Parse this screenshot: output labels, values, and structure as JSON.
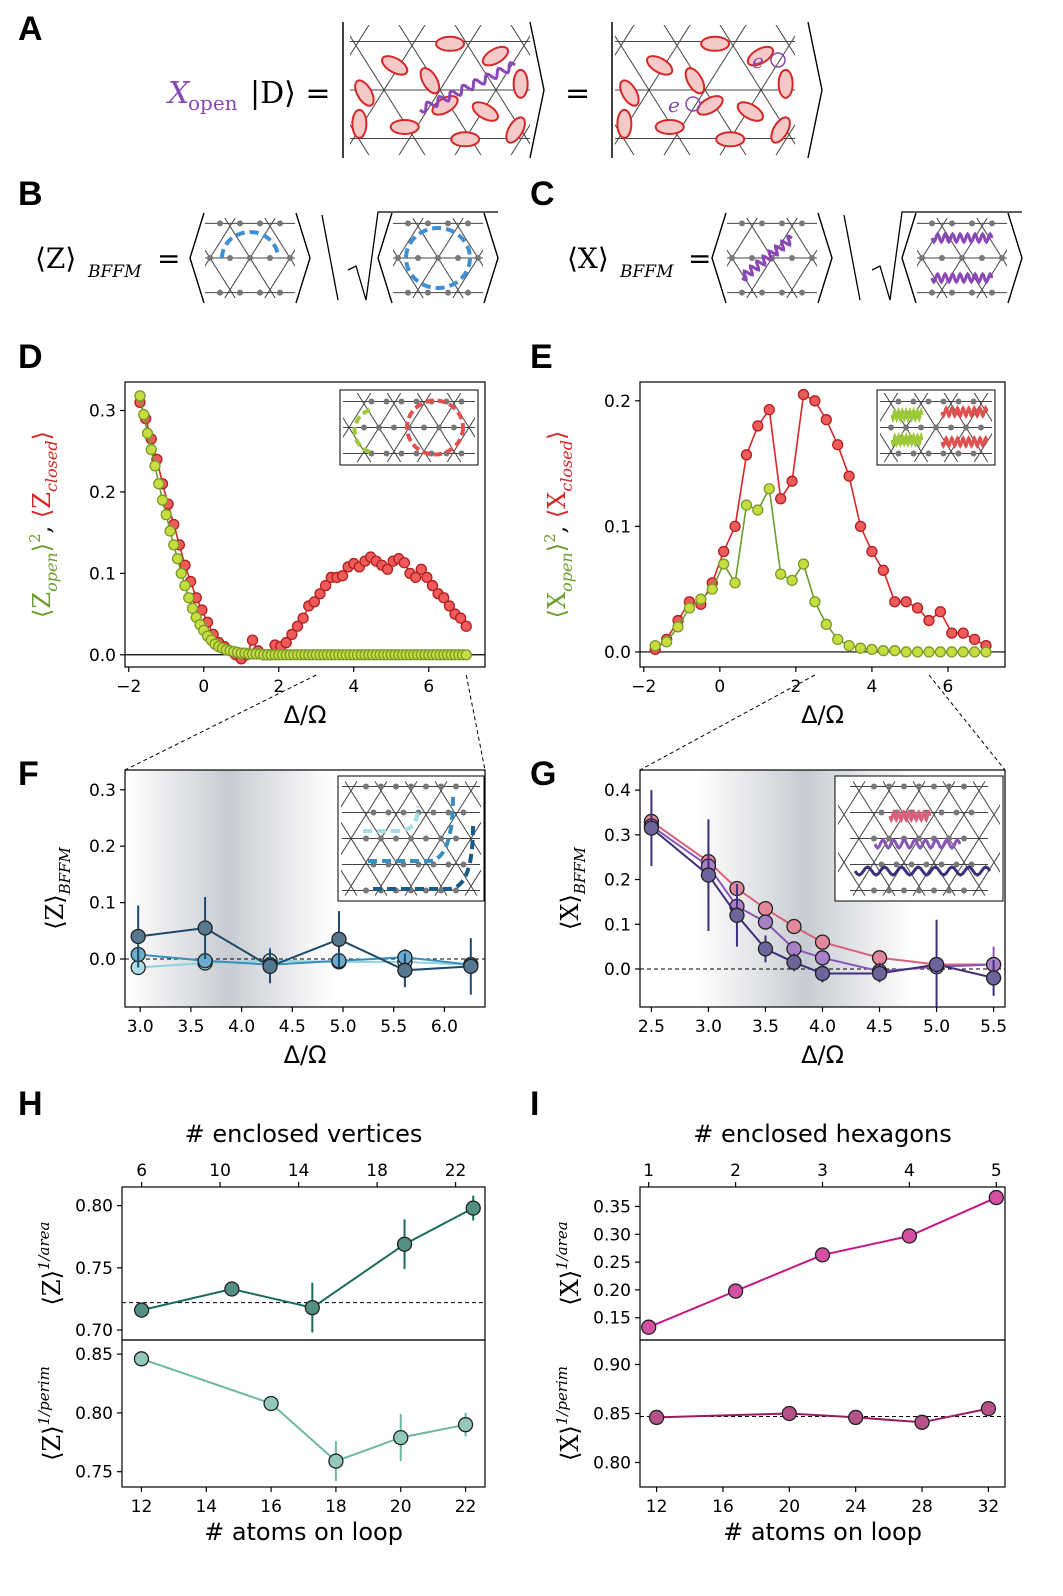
{
  "panel_letters": [
    "A",
    "B",
    "C",
    "D",
    "E",
    "F",
    "G",
    "H",
    "I"
  ],
  "equations": {
    "A": {
      "operator": "X",
      "operator_sub": "open",
      "ket": "|D⟩ =",
      "equals": "=",
      "excitation": "e"
    },
    "B": {
      "lhs": "⟨Z⟩",
      "lhs_sub": "BFFM",
      "equals": "="
    },
    "C": {
      "lhs": "⟨X⟩",
      "lhs_sub": "BFFM",
      "equals": "="
    }
  },
  "colors": {
    "red": "#d62728",
    "red_fill": "#ef5b5b",
    "green": "#6b9e2e",
    "green_fill": "#c7dc3f",
    "blue": "#3f8fd2",
    "purple": "#8a47b6",
    "teal_dark": "#1a6b5a",
    "teal_light": "#6eb7a4",
    "magenta": "#c71585",
    "magenta_dark": "#9c1a61"
  },
  "chart_data": [
    {
      "id": "D",
      "type": "line",
      "xlabel": "Δ/Ω",
      "ylabel_parts": [
        "⟨Z",
        "open",
        "⟩",
        "2",
        ", ",
        "⟨Z",
        "closed",
        "⟩"
      ],
      "xlim": [
        -2.1,
        7.5
      ],
      "ylim": [
        -0.015,
        0.335
      ],
      "xticks": [
        -2,
        0,
        2,
        4,
        6
      ],
      "xtick_labels": [
        "−2",
        "0",
        "2",
        "4",
        "6"
      ],
      "yticks": [
        0.0,
        0.1,
        0.2,
        0.3
      ],
      "ytick_labels": [
        "0.0",
        "0.1",
        "0.2",
        "0.3"
      ],
      "hline": 0.0,
      "series": [
        {
          "name": "Z_closed",
          "color": "red",
          "x": [
            -1.7,
            -1.55,
            -1.4,
            -1.25,
            -1.1,
            -0.95,
            -0.8,
            -0.65,
            -0.5,
            -0.35,
            -0.2,
            -0.05,
            0.1,
            0.25,
            0.4,
            0.55,
            0.7,
            0.85,
            1.0,
            1.15,
            1.3,
            1.45,
            1.6,
            1.75,
            1.9,
            2.05,
            2.2,
            2.35,
            2.5,
            2.65,
            2.8,
            2.95,
            3.1,
            3.25,
            3.4,
            3.55,
            3.7,
            3.85,
            4.0,
            4.15,
            4.3,
            4.45,
            4.6,
            4.75,
            4.9,
            5.05,
            5.2,
            5.35,
            5.5,
            5.65,
            5.8,
            5.95,
            6.1,
            6.25,
            6.4,
            6.55,
            6.7,
            6.85,
            7.0
          ],
          "y": [
            0.31,
            0.29,
            0.265,
            0.24,
            0.21,
            0.185,
            0.16,
            0.135,
            0.11,
            0.09,
            0.07,
            0.055,
            0.04,
            0.025,
            0.015,
            0.01,
            0.005,
            0.0,
            -0.005,
            0.0,
            0.018,
            0.005,
            0.0,
            0.0,
            0.012,
            0.01,
            0.015,
            0.025,
            0.035,
            0.045,
            0.06,
            0.065,
            0.075,
            0.085,
            0.095,
            0.095,
            0.097,
            0.108,
            0.112,
            0.108,
            0.115,
            0.12,
            0.115,
            0.11,
            0.105,
            0.115,
            0.118,
            0.113,
            0.1,
            0.095,
            0.105,
            0.095,
            0.085,
            0.075,
            0.07,
            0.06,
            0.05,
            0.045,
            0.035
          ],
          "err": 0.005
        },
        {
          "name": "Z_open_squared",
          "color": "green",
          "x": [
            -1.7,
            -1.6,
            -1.5,
            -1.4,
            -1.3,
            -1.2,
            -1.1,
            -1.0,
            -0.9,
            -0.8,
            -0.7,
            -0.6,
            -0.5,
            -0.4,
            -0.3,
            -0.2,
            -0.1,
            0.0,
            0.1,
            0.2,
            0.3,
            0.4,
            0.5,
            0.6,
            0.7,
            0.8,
            0.9,
            1.0,
            1.1,
            1.2,
            1.3,
            1.4,
            1.5,
            1.6,
            1.7,
            1.8,
            1.9,
            2.0,
            2.1,
            2.2,
            2.3,
            2.4,
            2.5,
            2.6,
            2.7,
            2.8,
            2.9,
            3.0,
            3.1,
            3.2,
            3.3,
            3.4,
            3.5,
            3.6,
            3.7,
            3.8,
            3.9,
            4.0,
            4.1,
            4.2,
            4.3,
            4.4,
            4.5,
            4.6,
            4.7,
            4.8,
            4.9,
            5.0,
            5.1,
            5.2,
            5.3,
            5.4,
            5.5,
            5.6,
            5.7,
            5.8,
            5.9,
            6.0,
            6.1,
            6.2,
            6.3,
            6.4,
            6.5,
            6.6,
            6.7,
            6.8,
            6.9,
            7.0
          ],
          "y": [
            0.318,
            0.295,
            0.272,
            0.252,
            0.232,
            0.21,
            0.19,
            0.172,
            0.152,
            0.135,
            0.118,
            0.1,
            0.085,
            0.07,
            0.057,
            0.046,
            0.037,
            0.03,
            0.023,
            0.018,
            0.013,
            0.01,
            0.008,
            0.006,
            0.005,
            0.004,
            0.003,
            0.002,
            0.002,
            0.001,
            0.001,
            0.001,
            0.001,
            0.0,
            0.0,
            0.0,
            0.0,
            0.0,
            0.0,
            0.0,
            0.0,
            0.0,
            0.0,
            0.0,
            0.0,
            0.0,
            0.0,
            0.0,
            0.0,
            0.0,
            0.0,
            0.0,
            0.0,
            0.0,
            0.0,
            0.0,
            0.0,
            0.0,
            0.0,
            0.0,
            0.0,
            0.0,
            0.0,
            0.0,
            0.0,
            0.0,
            0.0,
            0.0,
            0.0,
            0.0,
            0.0,
            0.0,
            0.0,
            0.0,
            0.0,
            0.0,
            0.0,
            0.0,
            0.0,
            0.0,
            0.0,
            0.0,
            0.0,
            0.0,
            0.0,
            0.0,
            0.0,
            0.0
          ],
          "err": 0.0
        }
      ]
    },
    {
      "id": "E",
      "type": "line",
      "xlabel": "Δ/Ω",
      "ylabel_parts": [
        "⟨X",
        "open",
        "⟩",
        "2",
        ", ",
        "⟨X",
        "closed",
        "⟩"
      ],
      "xlim": [
        -2.1,
        7.5
      ],
      "ylim": [
        -0.012,
        0.215
      ],
      "xticks": [
        -2,
        0,
        2,
        4,
        6
      ],
      "xtick_labels": [
        "−2",
        "0",
        "2",
        "4",
        "6"
      ],
      "yticks": [
        0.0,
        0.1,
        0.2
      ],
      "ytick_labels": [
        "0.0",
        "0.1",
        "0.2"
      ],
      "hline": 0.0,
      "series": [
        {
          "name": "X_closed",
          "color": "red",
          "x": [
            -1.7,
            -1.4,
            -1.1,
            -0.8,
            -0.5,
            -0.2,
            0.1,
            0.4,
            0.7,
            1.0,
            1.3,
            1.6,
            1.9,
            2.2,
            2.5,
            2.8,
            3.1,
            3.4,
            3.7,
            4.0,
            4.3,
            4.6,
            4.9,
            5.2,
            5.5,
            5.8,
            6.1,
            6.4,
            6.7,
            7.0
          ],
          "y": [
            0.002,
            0.01,
            0.025,
            0.04,
            0.038,
            0.055,
            0.08,
            0.1,
            0.157,
            0.18,
            0.193,
            0.122,
            0.136,
            0.205,
            0.2,
            0.185,
            0.165,
            0.14,
            0.1,
            0.08,
            0.065,
            0.04,
            0.04,
            0.035,
            0.025,
            0.032,
            0.015,
            0.015,
            0.01,
            0.005
          ],
          "err": 0.004
        },
        {
          "name": "X_open_squared",
          "color": "green",
          "x": [
            -1.7,
            -1.4,
            -1.1,
            -0.8,
            -0.5,
            -0.2,
            0.1,
            0.4,
            0.7,
            1.0,
            1.3,
            1.6,
            1.9,
            2.2,
            2.5,
            2.8,
            3.1,
            3.4,
            3.7,
            4.0,
            4.3,
            4.6,
            4.9,
            5.2,
            5.5,
            5.8,
            6.1,
            6.4,
            6.7,
            7.0
          ],
          "y": [
            0.005,
            0.008,
            0.02,
            0.035,
            0.042,
            0.05,
            0.07,
            0.055,
            0.117,
            0.113,
            0.13,
            0.062,
            0.057,
            0.07,
            0.04,
            0.022,
            0.01,
            0.005,
            0.003,
            0.002,
            0.001,
            0.001,
            0.0,
            0.0,
            0.0,
            0.0,
            0.0,
            0.0,
            0.0,
            0.0
          ],
          "err": 0.0
        }
      ]
    },
    {
      "id": "F",
      "type": "line",
      "xlabel": "Δ/Ω",
      "ylabel_main": "⟨Z⟩",
      "ylabel_sub": "BFFM",
      "xlim": [
        2.85,
        6.4
      ],
      "ylim": [
        -0.085,
        0.335
      ],
      "xticks": [
        3.0,
        3.5,
        4.0,
        4.5,
        5.0,
        5.5,
        6.0
      ],
      "xtick_labels": [
        "3.0",
        "3.5",
        "4.0",
        "4.5",
        "5.0",
        "5.5",
        "6.0"
      ],
      "yticks": [
        0.0,
        0.1,
        0.2,
        0.3
      ],
      "ytick_labels": [
        "0.0",
        "0.1",
        "0.2",
        "0.3"
      ],
      "hline_dashed": 0.0,
      "shade_center": 3.85,
      "shade_halfwidth": 1.05,
      "series": [
        {
          "name": "small loop",
          "color": "#8fd3dc",
          "x": [
            2.98,
            3.64,
            4.28,
            4.96,
            5.61,
            6.26
          ],
          "y": [
            -0.015,
            -0.007,
            -0.003,
            -0.005,
            -0.005,
            -0.01
          ],
          "err": [
            0.0,
            0.0,
            0.01,
            0.0,
            0.0,
            0.0
          ]
        },
        {
          "name": "medium loop",
          "color": "#3a8fbf",
          "x": [
            2.98,
            3.64,
            4.28,
            4.96,
            5.61,
            6.26
          ],
          "y": [
            0.008,
            -0.003,
            -0.01,
            -0.003,
            0.003,
            -0.01
          ],
          "err": [
            0.0,
            0.0,
            0.03,
            0.0,
            0.015,
            0.0
          ]
        },
        {
          "name": "large loop",
          "color": "#1d4a6b",
          "x": [
            2.98,
            3.64,
            4.28,
            4.96,
            5.61,
            6.26
          ],
          "y": [
            0.04,
            0.055,
            -0.013,
            0.035,
            -0.02,
            -0.013
          ],
          "err": [
            0.055,
            0.055,
            0.03,
            0.05,
            0.03,
            0.05
          ]
        }
      ]
    },
    {
      "id": "G",
      "type": "line",
      "xlabel": "Δ/Ω",
      "ylabel_main": "⟨X⟩",
      "ylabel_sub": "BFFM",
      "xlim": [
        2.4,
        5.6
      ],
      "ylim": [
        -0.085,
        0.445
      ],
      "xticks": [
        2.5,
        3.0,
        3.5,
        4.0,
        4.5,
        5.0,
        5.5
      ],
      "xtick_labels": [
        "2.5",
        "3.0",
        "3.5",
        "4.0",
        "4.5",
        "5.0",
        "5.5"
      ],
      "yticks": [
        0.0,
        0.1,
        0.2,
        0.3,
        0.4
      ],
      "ytick_labels": [
        "0.0",
        "0.1",
        "0.2",
        "0.3",
        "0.4"
      ],
      "hline_dashed": 0.0,
      "shade_center": 3.85,
      "shade_halfwidth": 0.95,
      "series": [
        {
          "name": "small loop",
          "color": "#d9607a",
          "x": [
            2.5,
            3.0,
            3.25,
            3.5,
            3.75,
            4.0,
            4.5,
            5.0,
            5.5
          ],
          "y": [
            0.33,
            0.24,
            0.18,
            0.135,
            0.095,
            0.06,
            0.025,
            0.01,
            0.01
          ],
          "err": [
            0.0,
            0.0,
            0.0,
            0.0,
            0.0,
            0.0,
            0.0,
            0.0,
            0.0
          ]
        },
        {
          "name": "medium loop",
          "color": "#8a56b6",
          "x": [
            2.5,
            3.0,
            3.25,
            3.5,
            3.75,
            4.0,
            4.5,
            5.0,
            5.5
          ],
          "y": [
            0.32,
            0.23,
            0.14,
            0.105,
            0.045,
            0.025,
            -0.005,
            0.005,
            0.01
          ],
          "err": [
            0.0,
            0.05,
            0.02,
            0.0,
            0.0,
            0.0,
            0.02,
            0.0,
            0.04
          ]
        },
        {
          "name": "large loop",
          "color": "#3d2f7a",
          "x": [
            2.5,
            3.0,
            3.25,
            3.5,
            3.75,
            4.0,
            4.5,
            5.0,
            5.5
          ],
          "y": [
            0.315,
            0.21,
            0.12,
            0.045,
            0.015,
            -0.01,
            -0.01,
            0.01,
            -0.02
          ],
          "err": [
            0.085,
            0.125,
            0.07,
            0.03,
            0.02,
            0.02,
            0.02,
            0.1,
            0.04
          ]
        }
      ]
    },
    {
      "id": "H_top",
      "type": "line",
      "top_xlabel": "# enclosed vertices",
      "ylabel_main": "⟨Z⟩",
      "ylabel_sup": "1/area",
      "xlim": [
        5.0,
        23.5
      ],
      "ylim": [
        0.692,
        0.815
      ],
      "top_xticks": [
        6,
        10,
        14,
        18,
        22
      ],
      "top_xtick_labels": [
        "6",
        "10",
        "14",
        "18",
        "22"
      ],
      "yticks": [
        0.7,
        0.75,
        0.8
      ],
      "ytick_labels": [
        "0.70",
        "0.75",
        "0.80"
      ],
      "hline_dashed": 0.722,
      "series": [
        {
          "name": "Z_area",
          "color": "teal_dark",
          "x": [
            6.0,
            10.6,
            14.7,
            19.4,
            22.9
          ],
          "y": [
            0.716,
            0.733,
            0.718,
            0.769,
            0.798
          ],
          "err": [
            0.0,
            0.0,
            0.02,
            0.02,
            0.01
          ]
        }
      ]
    },
    {
      "id": "H_bottom",
      "type": "line",
      "xlabel": "# atoms on loop",
      "ylabel_main": "⟨Z⟩",
      "ylabel_sup": "1/perim",
      "xlim": [
        11.4,
        22.6
      ],
      "ylim": [
        0.737,
        0.862
      ],
      "xticks": [
        12,
        14,
        16,
        18,
        20,
        22
      ],
      "xtick_labels": [
        "12",
        "14",
        "16",
        "18",
        "20",
        "22"
      ],
      "yticks": [
        0.75,
        0.8,
        0.85
      ],
      "ytick_labels": [
        "0.75",
        "0.80",
        "0.85"
      ],
      "series": [
        {
          "name": "Z_perim",
          "color": "teal_light",
          "x": [
            12,
            16,
            18,
            20,
            22
          ],
          "y": [
            0.846,
            0.808,
            0.759,
            0.779,
            0.79
          ],
          "err": [
            0.0,
            0.0,
            0.017,
            0.02,
            0.01
          ]
        }
      ]
    },
    {
      "id": "I_top",
      "type": "line",
      "top_xlabel": "# enclosed hexagons",
      "ylabel_main": "⟨X⟩",
      "ylabel_sup": "1/area",
      "xlim": [
        0.9,
        5.1
      ],
      "ylim": [
        0.11,
        0.385
      ],
      "top_xticks": [
        1,
        2,
        3,
        4,
        5
      ],
      "top_xtick_labels": [
        "1",
        "2",
        "3",
        "4",
        "5"
      ],
      "yticks": [
        0.15,
        0.2,
        0.25,
        0.3,
        0.35
      ],
      "ytick_labels": [
        "0.15",
        "0.20",
        "0.25",
        "0.30",
        "0.35"
      ],
      "series": [
        {
          "name": "X_area",
          "color": "magenta",
          "x": [
            1,
            2,
            3,
            4,
            5
          ],
          "y": [
            0.133,
            0.198,
            0.263,
            0.297,
            0.366
          ],
          "err": [
            0.0,
            0.0,
            0.0,
            0.0,
            0.0
          ]
        }
      ]
    },
    {
      "id": "I_bottom",
      "type": "line",
      "xlabel": "# atoms on loop",
      "ylabel_main": "⟨X⟩",
      "ylabel_sup": "1/perim",
      "xlim": [
        11.0,
        33.0
      ],
      "ylim": [
        0.775,
        0.925
      ],
      "xticks": [
        12,
        16,
        20,
        24,
        28,
        32
      ],
      "xtick_labels": [
        "12",
        "16",
        "20",
        "24",
        "28",
        "32"
      ],
      "yticks": [
        0.8,
        0.85,
        0.9
      ],
      "ytick_labels": [
        "0.80",
        "0.85",
        "0.90"
      ],
      "hline_dashed": 0.847,
      "series": [
        {
          "name": "X_perim",
          "color": "magenta_dark",
          "x": [
            12,
            20,
            24,
            28,
            32
          ],
          "y": [
            0.846,
            0.85,
            0.846,
            0.841,
            0.855
          ],
          "err": [
            0.0,
            0.0,
            0.0,
            0.0,
            0.0
          ]
        }
      ]
    }
  ]
}
